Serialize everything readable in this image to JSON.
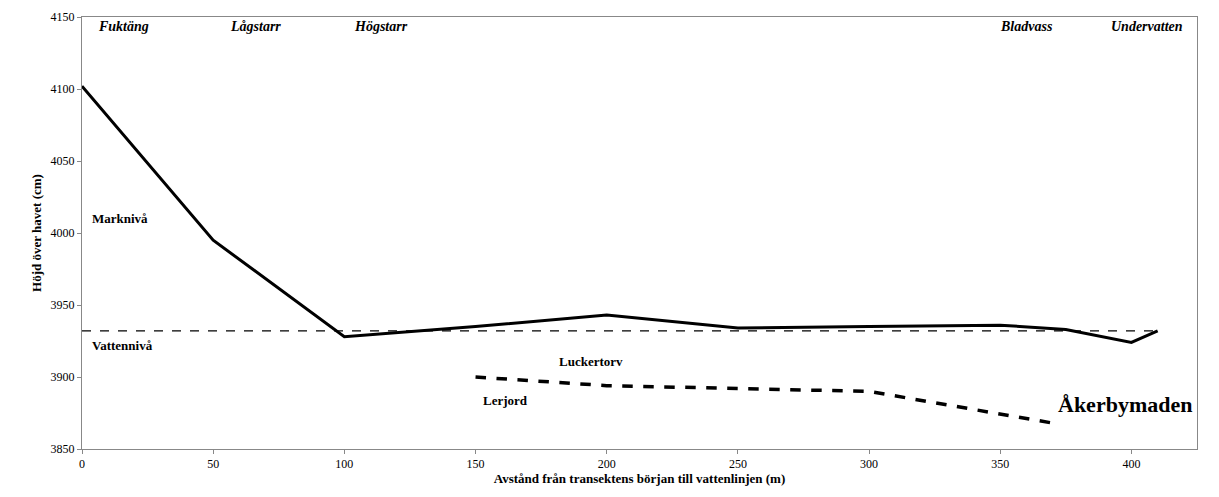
{
  "chart_data": {
    "type": "line",
    "x_label": "Avstånd från transektens början till vattenlinjen (m)",
    "y_label": "Höjd över havet (cm)",
    "xlim": [
      0,
      425
    ],
    "ylim": [
      3850,
      4150
    ],
    "xticks": [
      0,
      50,
      100,
      150,
      200,
      250,
      300,
      350,
      400
    ],
    "yticks": [
      3850,
      3900,
      3950,
      4000,
      4050,
      4100,
      4150
    ],
    "grid": false,
    "series": [
      {
        "name": "Marknivå",
        "color": "#000000",
        "line_style": "solid",
        "x": [
          0,
          50,
          100,
          150,
          200,
          250,
          300,
          350,
          375,
          400,
          410
        ],
        "values": [
          4102,
          3995,
          3928,
          3935,
          3943,
          3934,
          3935,
          3936,
          3933,
          3924,
          3932
        ],
        "label_x": 3,
        "label_y": 4010
      },
      {
        "name": "Vattennivå",
        "color": "#000000",
        "line_style": "dashed",
        "x": [
          0,
          410
        ],
        "values": [
          3932,
          3932
        ],
        "label_x": 3,
        "label_y": 3922
      },
      {
        "name": "Lerjord",
        "color": "#000000",
        "line_style": "dashed",
        "x": [
          150,
          200,
          300,
          370
        ],
        "values": [
          3900,
          3894,
          3890,
          3868
        ],
        "label_x": 152,
        "label_y": 3884
      }
    ],
    "zones": [
      {
        "text": "Fuktäng",
        "x": 16
      },
      {
        "text": "Lågstarr",
        "x": 66
      },
      {
        "text": "Högstarr",
        "x": 114
      },
      {
        "text": "Bladvass",
        "x": 360
      },
      {
        "text": "Undervatten",
        "x": 406
      }
    ],
    "annotations": [
      {
        "text": "Luckertorv",
        "x": 194,
        "y": 3911
      },
      {
        "text": "Åkerbymaden",
        "x": 424,
        "y": 3881
      }
    ]
  }
}
